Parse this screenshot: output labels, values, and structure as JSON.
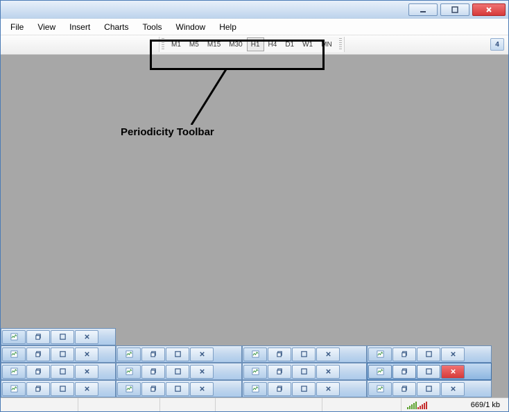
{
  "menu": {
    "items": [
      "File",
      "View",
      "Insert",
      "Charts",
      "Tools",
      "Window",
      "Help"
    ]
  },
  "periodicity": {
    "buttons": [
      "M1",
      "M5",
      "M15",
      "M30",
      "H1",
      "H4",
      "D1",
      "W1",
      "MN"
    ],
    "active_index": 4
  },
  "toolbar_right_badge": "4",
  "annotation": {
    "text": "Periodicity Toolbar"
  },
  "mdi_windows": {
    "rows": [
      {
        "count": 1,
        "widths": [
          166
        ],
        "selected_index": -1,
        "close_active_index": -1
      },
      {
        "count": 4,
        "widths": [
          166,
          182,
          180,
          180
        ],
        "selected_index": -1,
        "close_active_index": -1
      },
      {
        "count": 4,
        "widths": [
          166,
          182,
          180,
          180
        ],
        "selected_index": 3,
        "close_active_index": 3
      },
      {
        "count": 4,
        "widths": [
          166,
          182,
          180,
          180
        ],
        "selected_index": -1,
        "close_active_index": -1
      }
    ]
  },
  "statusbar": {
    "segments_left_widths": [
      112,
      118,
      80,
      154,
      114
    ],
    "connection_bars": [
      {
        "h": 3,
        "c": "#5aa02c"
      },
      {
        "h": 5,
        "c": "#5aa02c"
      },
      {
        "h": 7,
        "c": "#5aa02c"
      },
      {
        "h": 9,
        "c": "#5aa02c"
      },
      {
        "h": 11,
        "c": "#5aa02c"
      },
      {
        "h": 3,
        "c": "#c53030"
      },
      {
        "h": 5,
        "c": "#c53030"
      },
      {
        "h": 7,
        "c": "#c53030"
      },
      {
        "h": 9,
        "c": "#c53030"
      },
      {
        "h": 11,
        "c": "#c53030"
      }
    ],
    "kb_text": "669/1 kb"
  },
  "colors": {
    "main_bg": "#a7a7a7",
    "title_grad_top": "#e8f0fa",
    "title_grad_bot": "#bdd3ec"
  }
}
